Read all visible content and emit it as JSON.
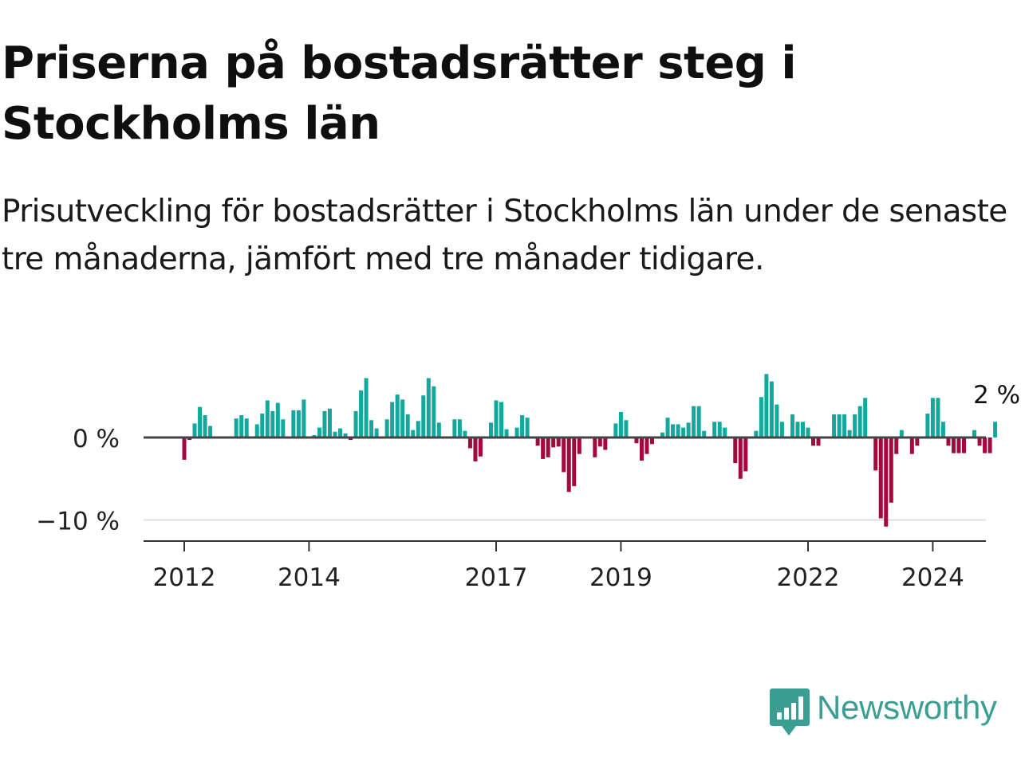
{
  "title": "Priserna på bostadsrätter steg i Stockholms län",
  "subtitle": "Prisutveckling för bostadsrätter i Stockholms län under de senaste tre månaderna, jämfört med tre månader tidigare.",
  "brand": {
    "name": "Newsworthy",
    "color": "#3a9e92"
  },
  "colors": {
    "positive": "#13a89b",
    "negative": "#a3093f",
    "zero_line": "#444444",
    "grid": "#dddddd",
    "axis": "#333333",
    "text": "#222222"
  },
  "chart_data": {
    "type": "bar",
    "title": "Priserna på bostadsrätter steg i Stockholms län",
    "xlabel": "",
    "ylabel": "",
    "y_unit": "%",
    "ylim": [
      -12,
      7.5
    ],
    "grid": true,
    "legend": "none",
    "y_ticks": [
      {
        "value": 0,
        "label": "0 %"
      },
      {
        "value": -10,
        "label": "−10 %"
      }
    ],
    "x_ticks": [
      {
        "year": 2012,
        "label": "2012"
      },
      {
        "year": 2014,
        "label": "2014"
      },
      {
        "year": 2017,
        "label": "2017"
      },
      {
        "year": 2019,
        "label": "2019"
      },
      {
        "year": 2022,
        "label": "2022"
      },
      {
        "year": 2024,
        "label": "2024"
      }
    ],
    "start": {
      "year": 2011,
      "month": 4
    },
    "last_value_label": "2 %",
    "values": [
      0.0,
      0.0,
      0.0,
      0.0,
      0.0,
      0.0,
      0.0,
      0.0,
      0.0,
      -2.7,
      -0.3,
      1.7,
      3.7,
      2.7,
      1.4,
      0.0,
      0.0,
      0.0,
      0.0,
      2.3,
      2.7,
      2.3,
      0.0,
      1.6,
      2.9,
      4.5,
      3.2,
      4.2,
      2.2,
      0.0,
      3.3,
      3.3,
      4.6,
      0.0,
      0.3,
      1.2,
      3.2,
      3.5,
      0.7,
      1.1,
      0.5,
      -0.3,
      3.2,
      5.7,
      7.2,
      2.1,
      1.1,
      0.0,
      2.2,
      4.3,
      5.2,
      4.6,
      2.8,
      0.9,
      2.0,
      5.1,
      7.2,
      6.2,
      1.8,
      0.0,
      0.0,
      2.2,
      2.2,
      0.8,
      -1.3,
      -2.9,
      -2.3,
      0.0,
      1.8,
      4.5,
      4.3,
      1.0,
      0.0,
      1.2,
      2.7,
      2.4,
      0.0,
      -1.0,
      -2.6,
      -2.4,
      -1.2,
      -1.1,
      -4.2,
      -6.6,
      -5.9,
      -2.0,
      0.0,
      0.0,
      -2.4,
      -1.1,
      -1.5,
      0.0,
      1.7,
      3.1,
      2.1,
      0.0,
      -0.7,
      -2.8,
      -2.0,
      -0.8,
      0.0,
      0.6,
      2.4,
      1.6,
      1.6,
      1.2,
      1.8,
      3.8,
      3.8,
      0.8,
      0.0,
      1.9,
      1.9,
      1.2,
      0.0,
      -3.1,
      -5.0,
      -4.1,
      0.0,
      0.8,
      4.9,
      7.7,
      6.8,
      4.0,
      1.9,
      0.0,
      2.8,
      1.9,
      1.9,
      1.2,
      -1.0,
      -1.0,
      0.0,
      0.0,
      2.8,
      2.8,
      2.8,
      0.9,
      2.8,
      3.8,
      4.8,
      0.0,
      -4.0,
      -9.8,
      -10.8,
      -7.9,
      -2.0,
      0.9,
      0.0,
      -2.0,
      -1.0,
      0.0,
      2.9,
      4.8,
      4.8,
      1.9,
      -1.0,
      -1.9,
      -1.9,
      -1.9,
      0.0,
      0.9,
      -1.0,
      -1.9,
      -1.9,
      1.9
    ]
  }
}
